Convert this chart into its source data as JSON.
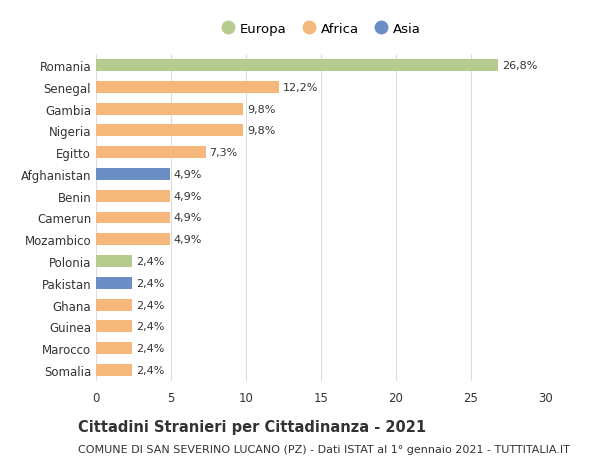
{
  "categories": [
    "Romania",
    "Senegal",
    "Gambia",
    "Nigeria",
    "Egitto",
    "Afghanistan",
    "Benin",
    "Camerun",
    "Mozambico",
    "Polonia",
    "Pakistan",
    "Ghana",
    "Guinea",
    "Marocco",
    "Somalia"
  ],
  "values": [
    26.8,
    12.2,
    9.8,
    9.8,
    7.3,
    4.9,
    4.9,
    4.9,
    4.9,
    2.4,
    2.4,
    2.4,
    2.4,
    2.4,
    2.4
  ],
  "labels": [
    "26,8%",
    "12,2%",
    "9,8%",
    "9,8%",
    "7,3%",
    "4,9%",
    "4,9%",
    "4,9%",
    "4,9%",
    "2,4%",
    "2,4%",
    "2,4%",
    "2,4%",
    "2,4%",
    "2,4%"
  ],
  "continents": [
    "Europa",
    "Africa",
    "Africa",
    "Africa",
    "Africa",
    "Asia",
    "Africa",
    "Africa",
    "Africa",
    "Europa",
    "Asia",
    "Africa",
    "Africa",
    "Africa",
    "Africa"
  ],
  "colors": {
    "Europa": "#b5cc8e",
    "Africa": "#f5b87a",
    "Asia": "#6b8fc4"
  },
  "legend_order": [
    "Europa",
    "Africa",
    "Asia"
  ],
  "title_bold": "Cittadini Stranieri per Cittadinanza - 2021",
  "subtitle": "COMUNE DI SAN SEVERINO LUCANO (PZ) - Dati ISTAT al 1° gennaio 2021 - TUTTITALIA.IT",
  "xlim": [
    0,
    30
  ],
  "xticks": [
    0,
    5,
    10,
    15,
    20,
    25,
    30
  ],
  "background_color": "#ffffff",
  "bar_height": 0.55,
  "grid_color": "#dddddd",
  "text_color": "#333333",
  "title_fontsize": 10.5,
  "subtitle_fontsize": 8,
  "tick_fontsize": 8.5,
  "label_fontsize": 8,
  "legend_fontsize": 9.5
}
